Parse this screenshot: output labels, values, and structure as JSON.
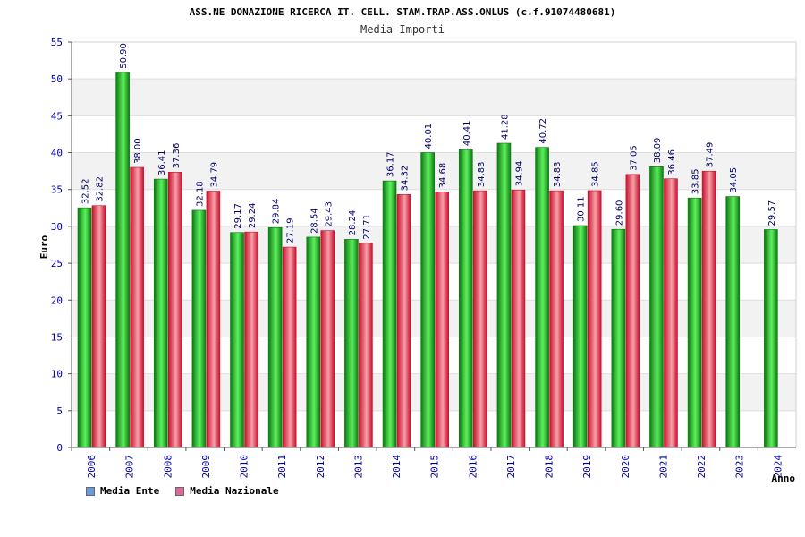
{
  "chart_data": {
    "type": "bar",
    "title": "ASS.NE DONAZIONE RICERCA IT. CELL. STAM.TRAP.ASS.ONLUS (c.f.91074480681)",
    "subtitle": "Media Importi",
    "xlabel": "Anno",
    "ylabel": "Euro",
    "ylim": [
      0,
      55
    ],
    "yticks": [
      0,
      5,
      10,
      15,
      20,
      25,
      30,
      35,
      40,
      45,
      50,
      55
    ],
    "categories": [
      "2006",
      "2007",
      "2008",
      "2009",
      "2010",
      "2011",
      "2012",
      "2013",
      "2014",
      "2015",
      "2016",
      "2017",
      "2018",
      "2019",
      "2020",
      "2021",
      "2022",
      "2023",
      "2024"
    ],
    "series": [
      {
        "name": "Media Ente",
        "values": [
          32.52,
          50.9,
          36.41,
          32.18,
          29.17,
          29.84,
          28.54,
          28.24,
          36.17,
          40.01,
          40.41,
          41.28,
          40.72,
          30.11,
          29.6,
          38.09,
          33.85,
          34.05,
          29.57
        ],
        "labels": [
          "32.52",
          "50.90",
          "36.41",
          "32.18",
          "29.17",
          "29.84",
          "28.54",
          "28.24",
          "36.17",
          "40.01",
          "40.41",
          "41.28",
          "40.72",
          "30.11",
          "29.60",
          "38.09",
          "33.85",
          "34.05",
          "29.57"
        ]
      },
      {
        "name": "Media Nazionale",
        "values": [
          32.82,
          38.0,
          37.36,
          34.79,
          29.24,
          27.19,
          29.43,
          27.71,
          34.32,
          34.68,
          34.83,
          34.94,
          34.83,
          34.85,
          37.05,
          36.46,
          37.49,
          null,
          null
        ],
        "labels": [
          "32.82",
          "38.00",
          "37.36",
          "34.79",
          "29.24",
          "27.19",
          "29.43",
          "27.71",
          "34.32",
          "34.68",
          "34.83",
          "34.94",
          "34.83",
          "34.85",
          "37.05",
          "36.46",
          "37.49",
          null,
          null
        ]
      }
    ],
    "grid": true,
    "legend_position": "bottom-left"
  },
  "colors": {
    "ente_dark": "#0b7a10",
    "ente_light": "#5ff05f",
    "naz_dark": "#c8102e",
    "naz_light": "#f7a0a8",
    "legend_ente": "#6699dd",
    "legend_naz": "#dd6699",
    "band": "#f2f2f2",
    "tick_text": "#0000aa",
    "label_text": "#000066"
  }
}
